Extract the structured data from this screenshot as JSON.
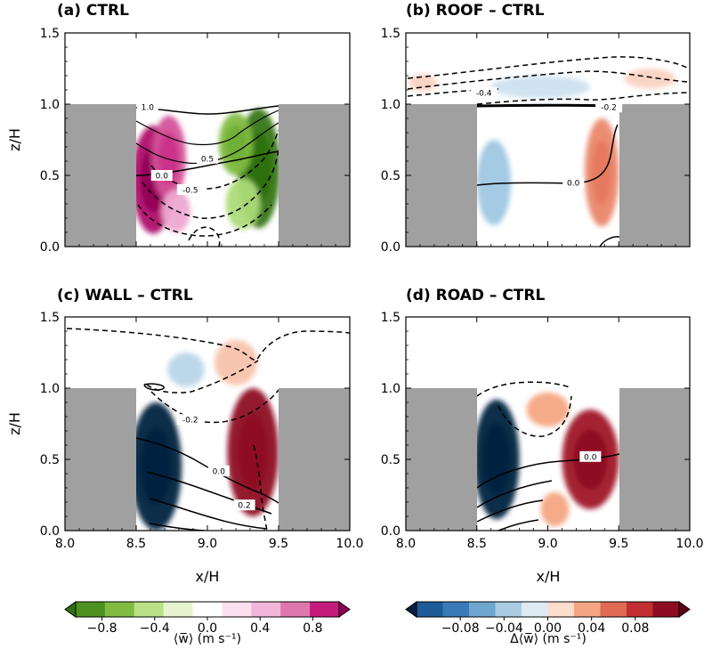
{
  "chart_data": [
    {
      "panel": "a",
      "type": "contour",
      "title": "(a) CTRL",
      "xlabel": "",
      "ylabel": "z/H",
      "xlim": [
        8.0,
        10.0
      ],
      "ylim": [
        0.0,
        1.5
      ],
      "x_ticks": [
        "8.0",
        "8.5",
        "9.0",
        "9.5",
        "10.0"
      ],
      "y_ticks": [
        "0.0",
        "0.5",
        "1.0",
        "1.5"
      ],
      "show_x_ticklabels": false,
      "buildings": [
        {
          "x0": 8.0,
          "x1": 8.5,
          "h": 1.0
        },
        {
          "x0": 9.5,
          "x1": 10.0,
          "h": 1.0
        }
      ],
      "color_scale": "PiYG",
      "blobs": [
        {
          "x": 8.62,
          "z": 0.47,
          "rx": 0.15,
          "rz": 0.38,
          "v": 0.85
        },
        {
          "x": 8.73,
          "z": 0.62,
          "rx": 0.12,
          "rz": 0.3,
          "v": 0.6
        },
        {
          "x": 8.78,
          "z": 0.25,
          "rx": 0.1,
          "rz": 0.15,
          "v": 0.3
        },
        {
          "x": 9.36,
          "z": 0.55,
          "rx": 0.15,
          "rz": 0.42,
          "v": -0.95
        },
        {
          "x": 9.2,
          "z": 0.72,
          "rx": 0.12,
          "rz": 0.22,
          "v": -0.5
        },
        {
          "x": 9.25,
          "z": 0.3,
          "rx": 0.12,
          "rz": 0.18,
          "v": -0.3
        }
      ],
      "contour_labels": [
        {
          "x": 8.58,
          "z": 0.98,
          "t": "1.0"
        },
        {
          "x": 9.0,
          "z": 0.62,
          "t": "0.5"
        },
        {
          "x": 8.68,
          "z": 0.5,
          "t": "0.0"
        },
        {
          "x": 8.88,
          "z": 0.4,
          "t": "-0.5"
        }
      ]
    },
    {
      "panel": "b",
      "type": "contour",
      "title": "(b) ROOF – CTRL",
      "xlabel": "",
      "ylabel": "",
      "xlim": [
        8.0,
        10.0
      ],
      "ylim": [
        0.0,
        1.5
      ],
      "x_ticks": [
        "8.0",
        "8.5",
        "9.0",
        "9.5",
        "10.0"
      ],
      "y_ticks": [
        "0.0",
        "0.5",
        "1.0",
        "1.5"
      ],
      "show_x_ticklabels": false,
      "buildings": [
        {
          "x0": 8.0,
          "x1": 8.5,
          "h": 1.0
        },
        {
          "x0": 9.5,
          "x1": 10.0,
          "h": 1.0
        }
      ],
      "color_scale": "RdBu_r",
      "blobs": [
        {
          "x": 8.62,
          "z": 0.45,
          "rx": 0.12,
          "rz": 0.3,
          "v": -0.035
        },
        {
          "x": 9.38,
          "z": 0.52,
          "rx": 0.12,
          "rz": 0.38,
          "v": 0.045
        },
        {
          "x": 8.95,
          "z": 1.12,
          "rx": 0.35,
          "rz": 0.08,
          "v": -0.018
        },
        {
          "x": 9.72,
          "z": 1.18,
          "rx": 0.18,
          "rz": 0.07,
          "v": 0.015
        },
        {
          "x": 8.12,
          "z": 1.15,
          "rx": 0.1,
          "rz": 0.06,
          "v": 0.015
        }
      ],
      "contour_labels": [
        {
          "x": 8.55,
          "z": 1.08,
          "t": "-0.4"
        },
        {
          "x": 9.43,
          "z": 0.98,
          "t": "-0.2"
        },
        {
          "x": 9.18,
          "z": 0.45,
          "t": "0.0"
        }
      ]
    },
    {
      "panel": "c",
      "type": "contour",
      "title": "(c) WALL – CTRL",
      "xlabel": "x/H",
      "ylabel": "z/H",
      "xlim": [
        8.0,
        10.0
      ],
      "ylim": [
        0.0,
        1.5
      ],
      "x_ticks": [
        "8.0",
        "8.5",
        "9.0",
        "9.5",
        "10.0"
      ],
      "y_ticks": [
        "0.0",
        "0.5",
        "1.0",
        "1.5"
      ],
      "show_x_ticklabels": true,
      "buildings": [
        {
          "x0": 8.0,
          "x1": 8.5,
          "h": 1.0
        },
        {
          "x0": 9.5,
          "x1": 10.0,
          "h": 1.0
        }
      ],
      "color_scale": "RdBu_r",
      "blobs": [
        {
          "x": 8.64,
          "z": 0.45,
          "rx": 0.18,
          "rz": 0.45,
          "v": -0.12
        },
        {
          "x": 9.32,
          "z": 0.55,
          "rx": 0.18,
          "rz": 0.45,
          "v": 0.12
        },
        {
          "x": 8.85,
          "z": 1.13,
          "rx": 0.13,
          "rz": 0.12,
          "v": -0.025
        },
        {
          "x": 9.2,
          "z": 1.18,
          "rx": 0.15,
          "rz": 0.16,
          "v": 0.02
        }
      ],
      "contour_labels": [
        {
          "x": 8.88,
          "z": 0.78,
          "t": "-0.2"
        },
        {
          "x": 9.08,
          "z": 0.42,
          "t": "0.0"
        },
        {
          "x": 9.26,
          "z": 0.18,
          "t": "0.2"
        }
      ]
    },
    {
      "panel": "d",
      "type": "contour",
      "title": "(d) ROAD – CTRL",
      "xlabel": "x/H",
      "ylabel": "",
      "xlim": [
        8.0,
        10.0
      ],
      "ylim": [
        0.0,
        1.5
      ],
      "x_ticks": [
        "8.0",
        "8.5",
        "9.0",
        "9.5",
        "10.0"
      ],
      "y_ticks": [
        "0.0",
        "0.5",
        "1.0",
        "1.5"
      ],
      "show_x_ticklabels": true,
      "buildings": [
        {
          "x0": 8.0,
          "x1": 8.5,
          "h": 1.0
        },
        {
          "x0": 9.5,
          "x1": 10.0,
          "h": 1.0
        }
      ],
      "color_scale": "RdBu_r",
      "blobs": [
        {
          "x": 8.64,
          "z": 0.5,
          "rx": 0.16,
          "rz": 0.42,
          "v": -0.12
        },
        {
          "x": 9.3,
          "z": 0.5,
          "rx": 0.2,
          "rz": 0.35,
          "v": 0.11
        },
        {
          "x": 9.0,
          "z": 0.85,
          "rx": 0.15,
          "rz": 0.12,
          "v": 0.03
        },
        {
          "x": 9.05,
          "z": 0.15,
          "rx": 0.1,
          "rz": 0.12,
          "v": 0.03
        }
      ],
      "contour_labels": [
        {
          "x": 9.3,
          "z": 0.52,
          "t": "0.0"
        }
      ]
    }
  ],
  "colorbars": [
    {
      "name": "w-mean",
      "label": "⟨w̅⟩ (m s⁻¹)",
      "colors": [
        "#2f6f0f",
        "#4d9221",
        "#7fbc41",
        "#b8e186",
        "#e6f5d0",
        "#ffffff",
        "#fde0ef",
        "#f1b6da",
        "#de77ae",
        "#c51b7d",
        "#8e0152"
      ],
      "ticks": [
        "−0.8",
        "−0.4",
        "0.0",
        "0.4",
        "0.8"
      ]
    },
    {
      "name": "w-diff",
      "label": "Δ⟨w̅⟩ (m s⁻¹)",
      "colors": [
        "#06213f",
        "#1f5a99",
        "#3a7ab8",
        "#6da6cf",
        "#aacde4",
        "#deebf5",
        "#fcdccb",
        "#f4a584",
        "#e06a54",
        "#c12f33",
        "#8e0d22",
        "#5e0013"
      ],
      "ticks": [
        "−0.08",
        "−0.04",
        "0.00",
        "0.04",
        "0.08"
      ]
    }
  ]
}
